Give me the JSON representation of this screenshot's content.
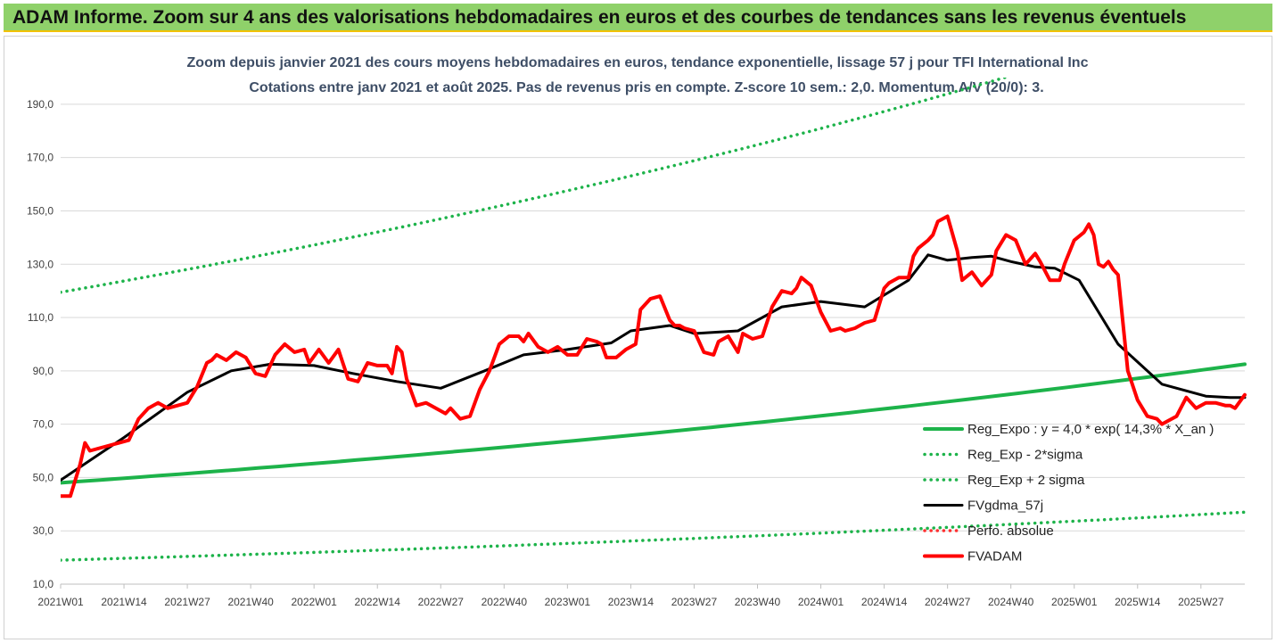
{
  "banner": {
    "title": "ADAM Informe. Zoom sur 4 ans des valorisations hebdomadaires en euros et des courbes de tendances sans les revenus éventuels"
  },
  "chart_data": {
    "type": "line",
    "title": "Zoom depuis janvier 2021 des cours moyens hebdomadaires en euros, tendance exponentielle, lissage 57 j pour TFI International Inc",
    "subtitle": "Cotations entre janv 2021 et août 2025.  Pas de revenus pris en compte. Z-score 10 sem.: 2,0. Momentum A/V (20/0): 3.",
    "xlabel": "",
    "ylabel": "",
    "ylim": [
      10,
      200
    ],
    "y_ticks": [
      "10,0",
      "30,0",
      "50,0",
      "70,0",
      "90,0",
      "110,0",
      "130,0",
      "150,0",
      "170,0",
      "190,0"
    ],
    "x_tick_labels": [
      "2021W01",
      "2021W14",
      "2021W27",
      "2021W40",
      "2022W01",
      "2022W14",
      "2022W27",
      "2022W40",
      "2023W01",
      "2023W14",
      "2023W27",
      "2023W40",
      "2024W01",
      "2024W14",
      "2024W27",
      "2024W40",
      "2025W01",
      "2025W14",
      "2025W27"
    ],
    "grid": "horizontal",
    "legend_position": "bottom-right",
    "series": [
      {
        "name": "Reg_Expo : y = 4,0 * exp( 14,3% *  X_an )",
        "color": "#1db34a",
        "style": "solid",
        "x": [
          0,
          243
        ],
        "y": [
          48.0,
          92.5
        ]
      },
      {
        "name": "Reg_Exp - 2*sigma",
        "color": "#1db34a",
        "style": "dotted",
        "x": [
          0,
          243
        ],
        "y": [
          19.0,
          37.0
        ]
      },
      {
        "name": "Reg_Exp + 2 sigma",
        "color": "#1db34a",
        "style": "dotted",
        "x": [
          0,
          243
        ],
        "y": [
          119.5,
          228.0
        ]
      },
      {
        "name": "FVgdma_57j",
        "color": "#000000",
        "style": "solid",
        "x": [
          0,
          13,
          26,
          35,
          43,
          52,
          60,
          69,
          78,
          87,
          95,
          104,
          113,
          117,
          125,
          130,
          139,
          148,
          156,
          165,
          174,
          178,
          182,
          187,
          191,
          195,
          200,
          204,
          209,
          217,
          226,
          235,
          240,
          243
        ],
        "y": [
          49,
          65,
          82,
          90,
          92.5,
          92,
          89,
          86,
          83.5,
          90,
          96,
          98,
          100.5,
          105,
          107,
          104,
          105,
          114,
          116,
          114,
          124,
          133.5,
          131.5,
          132.5,
          133,
          131,
          129,
          128.5,
          124,
          100,
          85,
          80.5,
          80,
          80
        ]
      },
      {
        "name": "Perfo. absolue",
        "color": "#ff3030",
        "style": "dotted",
        "x": [],
        "y": []
      },
      {
        "name": "FVADAM",
        "color": "#ff0000",
        "style": "solid",
        "x": [
          0,
          2,
          4,
          5,
          6,
          8,
          10,
          12,
          14,
          16,
          18,
          20,
          22,
          24,
          26,
          28,
          30,
          31,
          32,
          34,
          36,
          38,
          40,
          42,
          44,
          46,
          48,
          50,
          51,
          53,
          55,
          57,
          59,
          61,
          63,
          65,
          67,
          68,
          69,
          70,
          71,
          73,
          75,
          77,
          79,
          80,
          82,
          84,
          86,
          88,
          90,
          92,
          94,
          95,
          96,
          98,
          100,
          102,
          104,
          106,
          108,
          110,
          111,
          112,
          114,
          116,
          118,
          119,
          121,
          123,
          125,
          126,
          127,
          128,
          130,
          132,
          134,
          135,
          137,
          139,
          140,
          142,
          144,
          146,
          148,
          150,
          151,
          152,
          154,
          156,
          158,
          160,
          161,
          163,
          165,
          167,
          169,
          170,
          172,
          174,
          175,
          176,
          178,
          179,
          180,
          182,
          184,
          185,
          187,
          189,
          191,
          192,
          194,
          196,
          198,
          200,
          201,
          203,
          205,
          206,
          208,
          210,
          211,
          212,
          213,
          214,
          215,
          216,
          217,
          219,
          221,
          223,
          225,
          226,
          227,
          229,
          231,
          233,
          235,
          237,
          239,
          240,
          241,
          243
        ],
        "y": [
          43,
          43,
          55,
          63,
          60,
          61,
          62,
          63,
          64,
          72,
          76,
          78,
          76,
          77,
          78,
          84,
          93,
          94,
          96,
          94,
          97,
          95,
          89,
          88,
          96,
          100,
          97,
          98,
          93,
          98,
          93,
          98,
          87,
          86,
          93,
          92,
          92,
          89,
          99,
          97,
          87,
          77,
          78,
          76,
          74,
          76,
          72,
          73,
          83,
          90,
          100,
          103,
          103,
          101,
          104,
          99,
          97,
          99,
          96,
          96,
          102,
          101,
          100,
          95,
          95,
          98,
          100,
          113,
          117,
          118,
          109,
          107,
          107,
          106,
          105,
          97,
          96,
          101,
          103,
          97,
          104,
          102,
          103,
          114,
          120,
          119,
          121,
          125,
          122,
          112,
          105,
          106,
          105,
          106,
          108,
          109,
          121,
          123,
          125,
          125,
          133,
          136,
          139,
          141,
          146,
          148,
          135,
          124,
          127,
          122,
          126,
          135,
          141,
          139,
          130,
          134,
          131,
          124,
          124,
          130,
          139,
          142,
          145,
          141,
          130,
          129,
          131,
          128,
          126,
          90,
          79,
          73,
          72,
          70,
          71,
          73,
          80,
          76,
          78,
          78,
          77,
          77,
          76,
          81
        ]
      }
    ]
  }
}
